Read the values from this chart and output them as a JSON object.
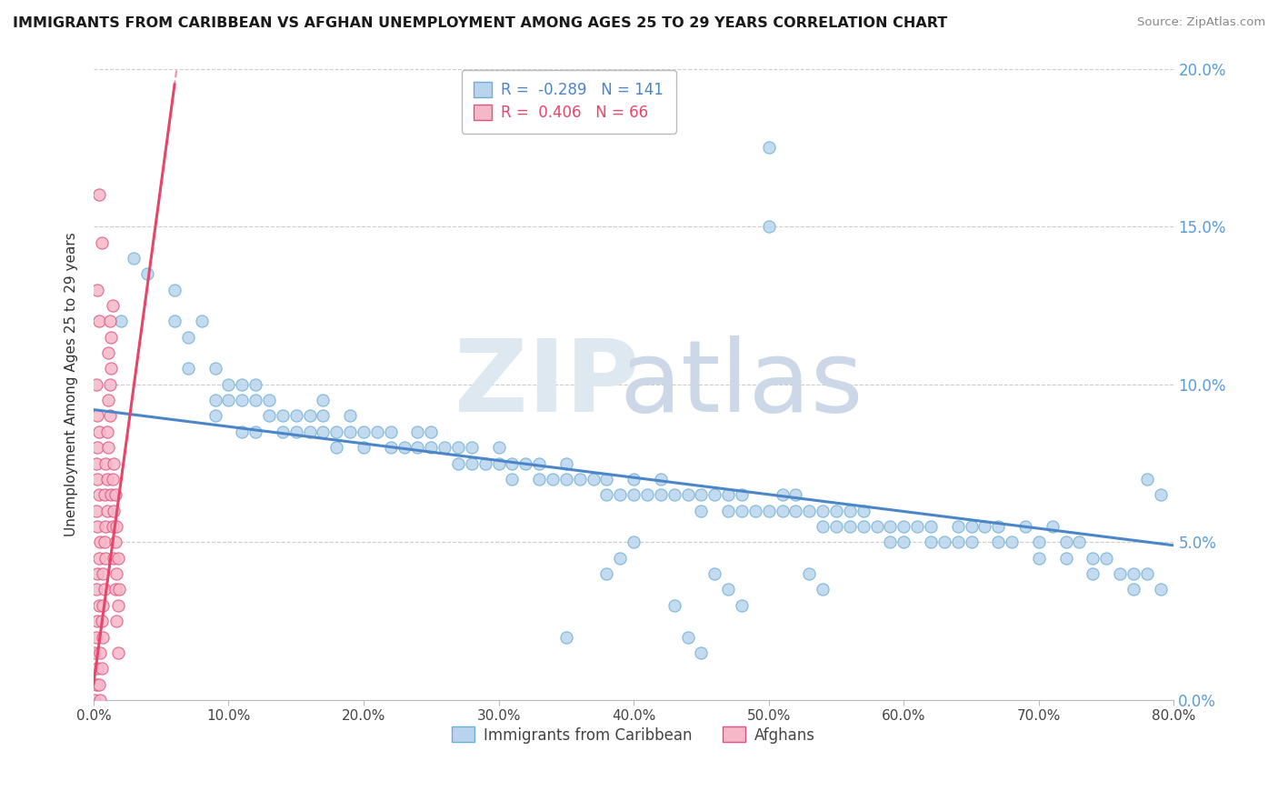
{
  "title": "IMMIGRANTS FROM CARIBBEAN VS AFGHAN UNEMPLOYMENT AMONG AGES 25 TO 29 YEARS CORRELATION CHART",
  "source": "Source: ZipAtlas.com",
  "ylabel": "Unemployment Among Ages 25 to 29 years",
  "xmin": 0.0,
  "xmax": 0.8,
  "ymin": 0.0,
  "ymax": 0.2,
  "caribbean_R": -0.289,
  "caribbean_N": 141,
  "afghan_R": 0.406,
  "afghan_N": 66,
  "caribbean_dot_color": "#bad4ed",
  "caribbean_dot_edge": "#6aaed6",
  "afghan_dot_color": "#f5b8c8",
  "afghan_dot_edge": "#e05080",
  "caribbean_line_color": "#4a86c8",
  "afghan_line_color": "#e8456a",
  "legend_labels": [
    "Immigrants from Caribbean",
    "Afghans"
  ],
  "yticks": [
    0.0,
    0.05,
    0.1,
    0.15,
    0.2
  ],
  "ytick_labels": [
    "0.0%",
    "5.0%",
    "10.0%",
    "15.0%",
    "20.0%"
  ],
  "xtick_labels": [
    "0.0%",
    "10.0%",
    "20.0%",
    "30.0%",
    "40.0%",
    "50.0%",
    "60.0%",
    "70.0%",
    "80.0%"
  ],
  "carib_line_x0": 0.0,
  "carib_line_y0": 0.092,
  "carib_line_x1": 0.8,
  "carib_line_y1": 0.049,
  "afghan_line_x0": 0.0,
  "afghan_line_y0": 0.005,
  "afghan_line_x1": 0.06,
  "afghan_line_y1": 0.195,
  "caribbean_scatter": [
    [
      0.02,
      0.12
    ],
    [
      0.03,
      0.14
    ],
    [
      0.04,
      0.135
    ],
    [
      0.06,
      0.13
    ],
    [
      0.06,
      0.12
    ],
    [
      0.07,
      0.115
    ],
    [
      0.07,
      0.105
    ],
    [
      0.08,
      0.12
    ],
    [
      0.09,
      0.105
    ],
    [
      0.09,
      0.095
    ],
    [
      0.09,
      0.09
    ],
    [
      0.1,
      0.1
    ],
    [
      0.1,
      0.095
    ],
    [
      0.11,
      0.1
    ],
    [
      0.11,
      0.095
    ],
    [
      0.11,
      0.085
    ],
    [
      0.12,
      0.095
    ],
    [
      0.12,
      0.085
    ],
    [
      0.12,
      0.1
    ],
    [
      0.13,
      0.09
    ],
    [
      0.13,
      0.095
    ],
    [
      0.14,
      0.09
    ],
    [
      0.14,
      0.085
    ],
    [
      0.15,
      0.085
    ],
    [
      0.15,
      0.09
    ],
    [
      0.16,
      0.085
    ],
    [
      0.16,
      0.09
    ],
    [
      0.17,
      0.085
    ],
    [
      0.17,
      0.09
    ],
    [
      0.17,
      0.095
    ],
    [
      0.18,
      0.08
    ],
    [
      0.18,
      0.085
    ],
    [
      0.19,
      0.085
    ],
    [
      0.19,
      0.09
    ],
    [
      0.2,
      0.08
    ],
    [
      0.2,
      0.085
    ],
    [
      0.21,
      0.085
    ],
    [
      0.22,
      0.085
    ],
    [
      0.22,
      0.08
    ],
    [
      0.23,
      0.08
    ],
    [
      0.24,
      0.08
    ],
    [
      0.24,
      0.085
    ],
    [
      0.25,
      0.08
    ],
    [
      0.25,
      0.085
    ],
    [
      0.26,
      0.08
    ],
    [
      0.27,
      0.075
    ],
    [
      0.27,
      0.08
    ],
    [
      0.28,
      0.08
    ],
    [
      0.28,
      0.075
    ],
    [
      0.29,
      0.075
    ],
    [
      0.3,
      0.08
    ],
    [
      0.3,
      0.075
    ],
    [
      0.31,
      0.075
    ],
    [
      0.31,
      0.07
    ],
    [
      0.32,
      0.075
    ],
    [
      0.33,
      0.07
    ],
    [
      0.33,
      0.075
    ],
    [
      0.34,
      0.07
    ],
    [
      0.35,
      0.075
    ],
    [
      0.35,
      0.07
    ],
    [
      0.36,
      0.07
    ],
    [
      0.37,
      0.07
    ],
    [
      0.38,
      0.065
    ],
    [
      0.38,
      0.07
    ],
    [
      0.39,
      0.065
    ],
    [
      0.4,
      0.07
    ],
    [
      0.4,
      0.065
    ],
    [
      0.41,
      0.065
    ],
    [
      0.42,
      0.065
    ],
    [
      0.42,
      0.07
    ],
    [
      0.43,
      0.065
    ],
    [
      0.44,
      0.065
    ],
    [
      0.45,
      0.065
    ],
    [
      0.45,
      0.06
    ],
    [
      0.46,
      0.065
    ],
    [
      0.47,
      0.06
    ],
    [
      0.47,
      0.065
    ],
    [
      0.48,
      0.06
    ],
    [
      0.48,
      0.065
    ],
    [
      0.49,
      0.06
    ],
    [
      0.5,
      0.175
    ],
    [
      0.5,
      0.15
    ],
    [
      0.5,
      0.06
    ],
    [
      0.51,
      0.065
    ],
    [
      0.51,
      0.06
    ],
    [
      0.52,
      0.065
    ],
    [
      0.52,
      0.06
    ],
    [
      0.53,
      0.06
    ],
    [
      0.54,
      0.055
    ],
    [
      0.54,
      0.06
    ],
    [
      0.55,
      0.06
    ],
    [
      0.55,
      0.055
    ],
    [
      0.56,
      0.055
    ],
    [
      0.56,
      0.06
    ],
    [
      0.57,
      0.055
    ],
    [
      0.57,
      0.06
    ],
    [
      0.58,
      0.055
    ],
    [
      0.59,
      0.055
    ],
    [
      0.59,
      0.05
    ],
    [
      0.6,
      0.055
    ],
    [
      0.6,
      0.05
    ],
    [
      0.61,
      0.055
    ],
    [
      0.62,
      0.05
    ],
    [
      0.62,
      0.055
    ],
    [
      0.63,
      0.05
    ],
    [
      0.64,
      0.055
    ],
    [
      0.64,
      0.05
    ],
    [
      0.65,
      0.05
    ],
    [
      0.65,
      0.055
    ],
    [
      0.66,
      0.055
    ],
    [
      0.67,
      0.055
    ],
    [
      0.67,
      0.05
    ],
    [
      0.68,
      0.05
    ],
    [
      0.69,
      0.055
    ],
    [
      0.7,
      0.05
    ],
    [
      0.7,
      0.045
    ],
    [
      0.71,
      0.055
    ],
    [
      0.72,
      0.05
    ],
    [
      0.72,
      0.045
    ],
    [
      0.73,
      0.05
    ],
    [
      0.74,
      0.045
    ],
    [
      0.74,
      0.04
    ],
    [
      0.75,
      0.045
    ],
    [
      0.76,
      0.04
    ],
    [
      0.77,
      0.04
    ],
    [
      0.77,
      0.035
    ],
    [
      0.78,
      0.07
    ],
    [
      0.78,
      0.04
    ],
    [
      0.79,
      0.065
    ],
    [
      0.79,
      0.035
    ],
    [
      0.35,
      0.02
    ],
    [
      0.44,
      0.02
    ],
    [
      0.45,
      0.015
    ],
    [
      0.43,
      0.03
    ],
    [
      0.47,
      0.035
    ],
    [
      0.48,
      0.03
    ],
    [
      0.46,
      0.04
    ],
    [
      0.53,
      0.04
    ],
    [
      0.54,
      0.035
    ],
    [
      0.38,
      0.04
    ],
    [
      0.39,
      0.045
    ],
    [
      0.4,
      0.05
    ]
  ],
  "afghan_scatter": [
    [
      0.004,
      0.16
    ],
    [
      0.006,
      0.145
    ],
    [
      0.003,
      0.13
    ],
    [
      0.004,
      0.12
    ],
    [
      0.002,
      0.1
    ],
    [
      0.003,
      0.09
    ],
    [
      0.004,
      0.085
    ],
    [
      0.003,
      0.08
    ],
    [
      0.002,
      0.075
    ],
    [
      0.003,
      0.07
    ],
    [
      0.004,
      0.065
    ],
    [
      0.002,
      0.06
    ],
    [
      0.003,
      0.055
    ],
    [
      0.005,
      0.05
    ],
    [
      0.004,
      0.045
    ],
    [
      0.003,
      0.04
    ],
    [
      0.002,
      0.035
    ],
    [
      0.004,
      0.03
    ],
    [
      0.003,
      0.025
    ],
    [
      0.002,
      0.02
    ],
    [
      0.001,
      0.015
    ],
    [
      0.003,
      0.01
    ],
    [
      0.002,
      0.005
    ],
    [
      0.001,
      0.0
    ],
    [
      0.005,
      0.0
    ],
    [
      0.004,
      0.005
    ],
    [
      0.006,
      0.01
    ],
    [
      0.005,
      0.015
    ],
    [
      0.007,
      0.02
    ],
    [
      0.006,
      0.025
    ],
    [
      0.007,
      0.03
    ],
    [
      0.008,
      0.035
    ],
    [
      0.007,
      0.04
    ],
    [
      0.009,
      0.045
    ],
    [
      0.008,
      0.05
    ],
    [
      0.009,
      0.055
    ],
    [
      0.01,
      0.06
    ],
    [
      0.008,
      0.065
    ],
    [
      0.01,
      0.07
    ],
    [
      0.009,
      0.075
    ],
    [
      0.011,
      0.08
    ],
    [
      0.01,
      0.085
    ],
    [
      0.012,
      0.09
    ],
    [
      0.011,
      0.095
    ],
    [
      0.012,
      0.1
    ],
    [
      0.013,
      0.105
    ],
    [
      0.011,
      0.11
    ],
    [
      0.013,
      0.115
    ],
    [
      0.012,
      0.12
    ],
    [
      0.014,
      0.125
    ],
    [
      0.013,
      0.065
    ],
    [
      0.014,
      0.07
    ],
    [
      0.015,
      0.075
    ],
    [
      0.014,
      0.055
    ],
    [
      0.015,
      0.06
    ],
    [
      0.016,
      0.065
    ],
    [
      0.015,
      0.045
    ],
    [
      0.016,
      0.05
    ],
    [
      0.017,
      0.055
    ],
    [
      0.016,
      0.035
    ],
    [
      0.017,
      0.04
    ],
    [
      0.018,
      0.045
    ],
    [
      0.017,
      0.025
    ],
    [
      0.018,
      0.03
    ],
    [
      0.019,
      0.035
    ],
    [
      0.018,
      0.015
    ]
  ]
}
